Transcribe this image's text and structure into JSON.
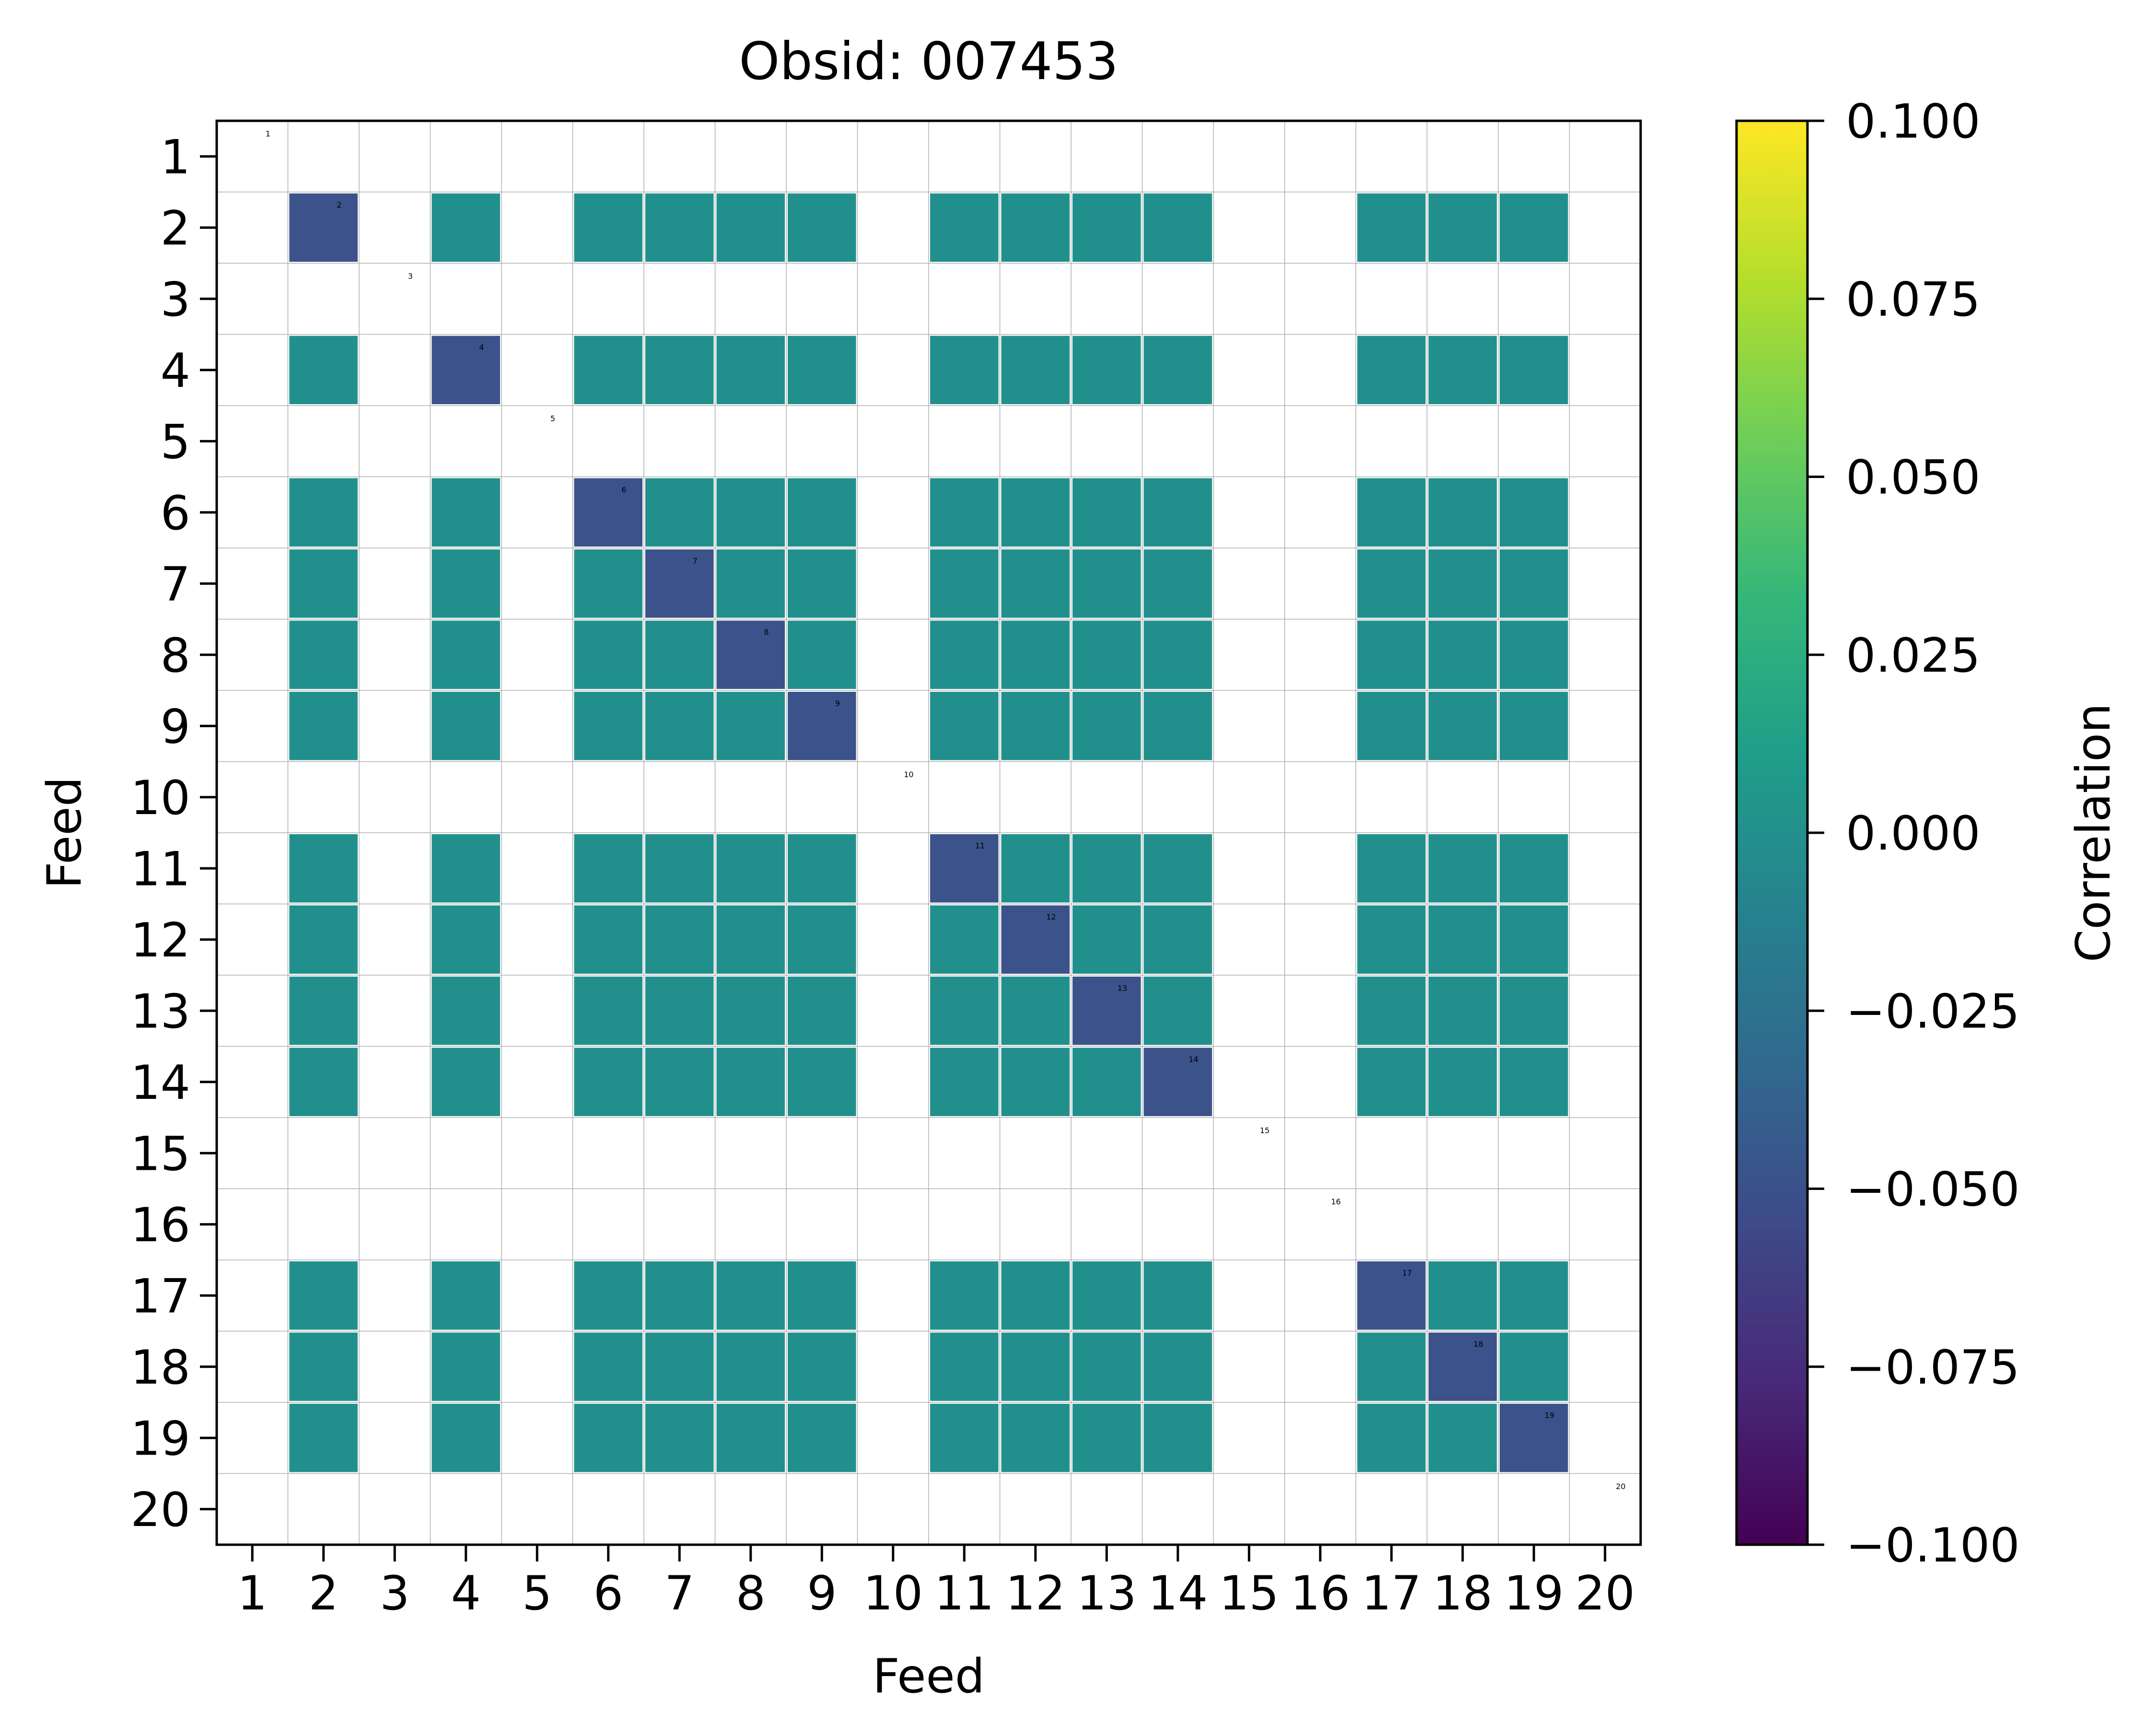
{
  "chart_data": {
    "type": "heatmap",
    "title": "Obsid: 007453",
    "xlabel": "Feed",
    "ylabel": "Feed",
    "x_ticks": [
      "1",
      "2",
      "3",
      "4",
      "5",
      "6",
      "7",
      "8",
      "9",
      "10",
      "11",
      "12",
      "13",
      "14",
      "15",
      "16",
      "17",
      "18",
      "19",
      "20"
    ],
    "y_ticks": [
      "1",
      "2",
      "3",
      "4",
      "5",
      "6",
      "7",
      "8",
      "9",
      "10",
      "11",
      "12",
      "13",
      "14",
      "15",
      "16",
      "17",
      "18",
      "19",
      "20"
    ],
    "diagonal_labels": [
      "1",
      "2",
      "3",
      "4",
      "5",
      "6",
      "7",
      "8",
      "9",
      "10",
      "11",
      "12",
      "13",
      "14",
      "15",
      "16",
      "17",
      "18",
      "19",
      "20"
    ],
    "active_feeds": [
      2,
      4,
      6,
      7,
      8,
      9,
      11,
      12,
      13,
      14,
      17,
      18,
      19
    ],
    "inactive_feeds": [
      1,
      3,
      5,
      10,
      15,
      16,
      20
    ],
    "cell_value": 0.0,
    "diagonal_value": -0.05,
    "colorbar": {
      "label": "Correlation",
      "range": [
        -0.1,
        0.1
      ],
      "ticks": [
        "0.100",
        "0.075",
        "0.050",
        "0.025",
        "0.000",
        "−0.025",
        "−0.050",
        "−0.075",
        "−0.100"
      ],
      "colormap": "viridis"
    },
    "grid": true
  },
  "colors": {
    "cell": "#21908d",
    "diagonal": "#3b528b",
    "grid": "#b0b0b0",
    "viridis": [
      "#440154",
      "#482878",
      "#3e4989",
      "#31688e",
      "#26828e",
      "#1f9e89",
      "#35b779",
      "#6ece58",
      "#b5de2b",
      "#fde725"
    ]
  }
}
